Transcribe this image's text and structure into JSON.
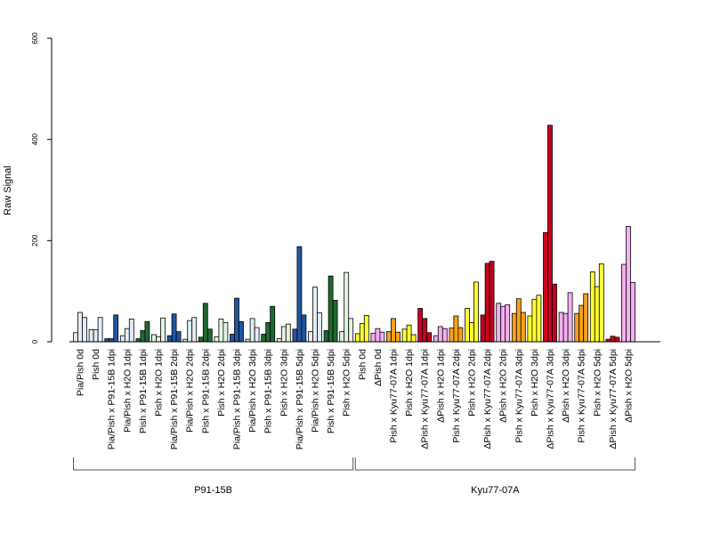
{
  "chart_data": {
    "type": "bar",
    "ylabel": "Raw Signal",
    "ylim": [
      0,
      600
    ],
    "yticks": [
      0,
      200,
      400,
      600
    ],
    "grid": false,
    "bars_per_category": 3,
    "categories": [
      "Pia/Pish 0d",
      "Pish 0d",
      "Pia/Pish x P91-15B 1dpi",
      "Pia/Pish x H2O 1dpi",
      "Pish x P91-15B 1dpi",
      "Pish x H2O 1dpi",
      "Pia/Pish x P91-15B 2dpi",
      "Pia/Pish x H2O 2dpi",
      "Pish x P91-15B 2dpi",
      "Pish x H2O 2dpi",
      "Pia/Pish x P91-15B 3dpi",
      "Pia/Pish x H2O 3dpi",
      "Pish x P91-15B 3dpi",
      "Pish x H2O 3dpi",
      "Pia/Pish x P91-15B 5dpi",
      "Pia/Pish x H2O 5dpi",
      "Pish x P91-15B 5dpi",
      "Pish x H2O 5dpi",
      "Pish 0d",
      "ΔPish 0d",
      "Pish x Kyu77-07A 1dpi",
      "Pish x H2O 1dpi",
      "ΔPish x Kyu77-07A 1dpi",
      "ΔPish x H2O 1dpi",
      "Pish x Kyu77-07A 2dpi",
      "Pish x H2O 2dpi",
      "ΔPish x Kyu77-07A 2dpi",
      "ΔPish x H2O 2dpi",
      "Pish x Kyu77-07A 3dpi",
      "Pish x H2O 3dpi",
      "ΔPish x Kyu77-07A 3dpi",
      "ΔPish x H2O 3dpi",
      "Pish x Kyu77-07A 5dpi",
      "Pish x H2O 5dpi",
      "ΔPish x Kyu77-07A 5dpi",
      "ΔPish x H2O 5dpi"
    ],
    "values": [
      [
        18,
        58,
        48
      ],
      [
        24,
        24,
        48
      ],
      [
        6,
        6,
        53
      ],
      [
        12,
        26,
        45
      ],
      [
        6,
        22,
        40
      ],
      [
        14,
        10,
        47
      ],
      [
        12,
        55,
        20
      ],
      [
        5,
        42,
        48
      ],
      [
        9,
        76,
        25
      ],
      [
        10,
        45,
        38
      ],
      [
        15,
        86,
        40
      ],
      [
        5,
        46,
        28
      ],
      [
        15,
        38,
        70
      ],
      [
        6,
        30,
        35
      ],
      [
        25,
        188,
        53
      ],
      [
        20,
        108,
        57
      ],
      [
        22,
        130,
        82
      ],
      [
        20,
        137,
        46
      ],
      [
        16,
        36,
        52
      ],
      [
        17,
        26,
        19
      ],
      [
        20,
        46,
        19
      ],
      [
        25,
        33,
        14
      ],
      [
        66,
        46,
        18
      ],
      [
        12,
        30,
        26
      ],
      [
        27,
        51,
        28
      ],
      [
        66,
        38,
        118
      ],
      [
        53,
        155,
        159
      ],
      [
        76,
        70,
        73
      ],
      [
        56,
        85,
        58
      ],
      [
        51,
        84,
        92
      ],
      [
        216,
        428,
        114
      ],
      [
        58,
        56,
        97
      ],
      [
        56,
        72,
        95
      ],
      [
        138,
        109,
        154
      ],
      [
        5,
        11,
        9
      ],
      [
        153,
        228,
        117
      ]
    ],
    "colors": [
      "#e3edf7",
      "#e3edf7",
      "#2055a0",
      "#e3edf7",
      "#1e6a30",
      "#e4f3e0",
      "#2055a0",
      "#e3edf7",
      "#1e6a30",
      "#e4f3e0",
      "#2055a0",
      "#e3edf7",
      "#1e6a30",
      "#e4f3e0",
      "#2055a0",
      "#e3edf7",
      "#1e6a30",
      "#e4f3e0",
      "#ffff33",
      "#f5b0f2",
      "#f7a21b",
      "#ffff33",
      "#c8001e",
      "#f5b0f2",
      "#f7a21b",
      "#ffff33",
      "#c8001e",
      "#f5b0f2",
      "#f7a21b",
      "#ffff33",
      "#c8001e",
      "#f5b0f2",
      "#f7a21b",
      "#ffff33",
      "#c8001e",
      "#f5b0f2"
    ],
    "groups": [
      {
        "label": "P91-15B",
        "first": 0,
        "last": 17
      },
      {
        "label": "Kyu77-07A",
        "first": 18,
        "last": 35
      }
    ]
  }
}
